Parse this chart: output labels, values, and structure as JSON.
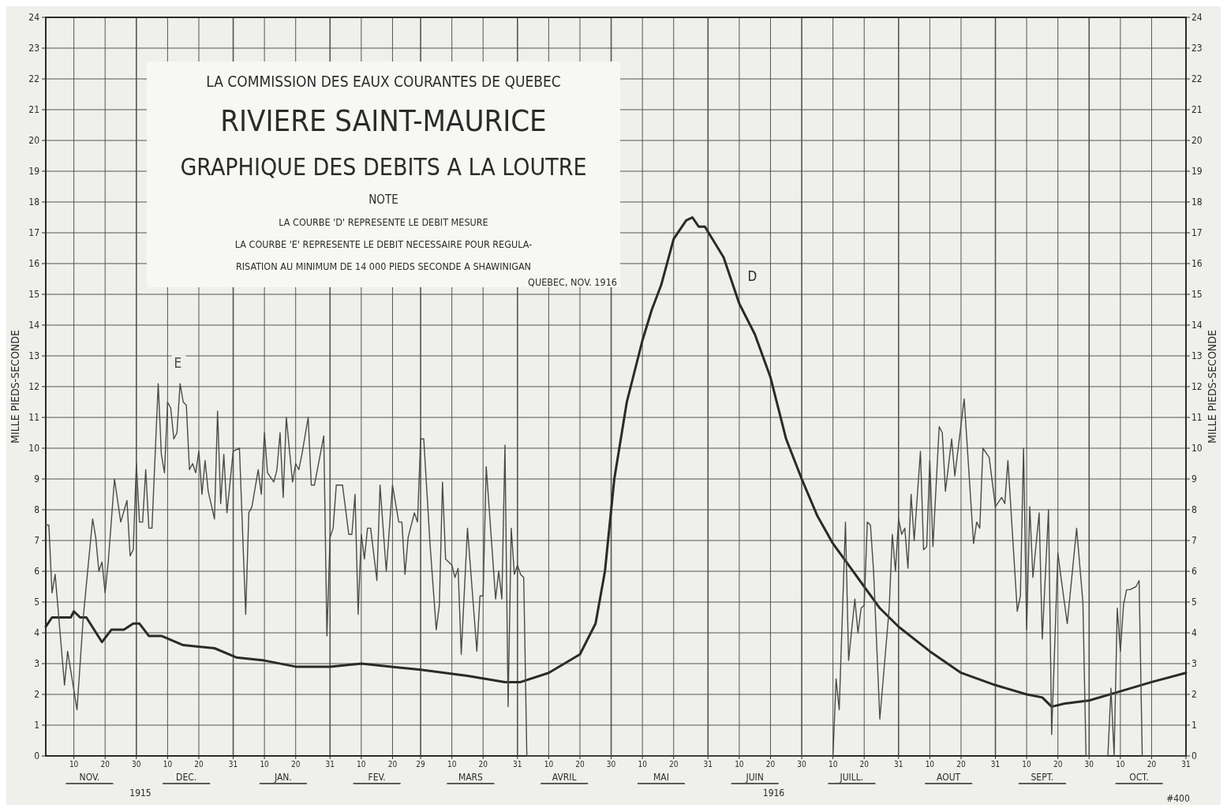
{
  "chart_data": {
    "type": "line",
    "title": "LA COMMISSION DES EAUX COURANTES DE QUEBEC",
    "subtitle": "RIVIERE SAINT-MAURICE",
    "ylabel": "MILLE PIEDS-SECONDE",
    "y2label": "MILLE PIEDS-SECONDE",
    "annotations": [
      "GRAPHIQUE DES DEBITS A LA LOUTRE",
      "NOTE",
      "LA COURBE 'D' REPRESENTE LE DEBIT MESURE",
      "LA COURBE 'E' REPRESENTE LE DEBIT NECESSAIRE POUR REGULA-",
      "RISATION AU MINIMUM DE 14 000 PIEDS SECONDE A SHAWINIGAN",
      "QUEBEC, NOV. 1916",
      "1915",
      "1916",
      "#400"
    ],
    "x2lim": [
      "1915-11-01",
      "1916-10-31"
    ],
    "x2ticks": [
      {
        "value": "1915-11-15",
        "label": "NOV."
      },
      {
        "value": "1915-12-16",
        "label": "DEC."
      },
      {
        "value": "1916-01-16",
        "label": "JAN."
      },
      {
        "value": "1916-02-15",
        "label": "FEV."
      },
      {
        "value": "1916-03-16",
        "label": "MARS"
      },
      {
        "value": "1916-04-15",
        "label": "AVRIL"
      },
      {
        "value": "1916-05-16",
        "label": "MAI"
      },
      {
        "value": "1916-06-15",
        "label": "JUIN"
      },
      {
        "value": "1916-07-16",
        "label": "JUILL."
      },
      {
        "value": "1916-08-16",
        "label": "AOUT"
      },
      {
        "value": "1916-09-15",
        "label": "SEPT."
      },
      {
        "value": "1916-10-16",
        "label": "OCT."
      }
    ],
    "xlim": [
      "1915-11-01",
      "1916-10-31"
    ],
    "xticks": [
      {
        "value": "1915-11-10",
        "label": "10"
      },
      {
        "value": "1915-11-20",
        "label": "20"
      },
      {
        "value": "1915-11-30",
        "label": "30"
      },
      {
        "value": "1915-12-10",
        "label": "10"
      },
      {
        "value": "1915-12-20",
        "label": "20"
      },
      {
        "value": "1915-12-31",
        "label": "31"
      },
      {
        "value": "1916-01-10",
        "label": "10"
      },
      {
        "value": "1916-01-20",
        "label": "20"
      },
      {
        "value": "1916-01-31",
        "label": "31"
      },
      {
        "value": "1916-02-10",
        "label": "10"
      },
      {
        "value": "1916-02-20",
        "label": "20"
      },
      {
        "value": "1916-02-29",
        "label": "29"
      },
      {
        "value": "1916-03-10",
        "label": "10"
      },
      {
        "value": "1916-03-20",
        "label": "20"
      },
      {
        "value": "1916-03-31",
        "label": "31"
      },
      {
        "value": "1916-04-10",
        "label": "10"
      },
      {
        "value": "1916-04-20",
        "label": "20"
      },
      {
        "value": "1916-04-30",
        "label": "30"
      },
      {
        "value": "1916-05-10",
        "label": "10"
      },
      {
        "value": "1916-05-20",
        "label": "20"
      },
      {
        "value": "1916-05-31",
        "label": "31"
      },
      {
        "value": "1916-06-10",
        "label": "10"
      },
      {
        "value": "1916-06-20",
        "label": "20"
      },
      {
        "value": "1916-06-30",
        "label": "30"
      },
      {
        "value": "1916-07-10",
        "label": "10"
      },
      {
        "value": "1916-07-20",
        "label": "20"
      },
      {
        "value": "1916-07-31",
        "label": "31"
      },
      {
        "value": "1916-08-10",
        "label": "10"
      },
      {
        "value": "1916-08-20",
        "label": "20"
      },
      {
        "value": "1916-08-31",
        "label": "31"
      },
      {
        "value": "1916-09-10",
        "label": "10"
      },
      {
        "value": "1916-09-20",
        "label": "20"
      },
      {
        "value": "1916-09-30",
        "label": "30"
      },
      {
        "value": "1916-10-10",
        "label": "10"
      },
      {
        "value": "1916-10-20",
        "label": "20"
      },
      {
        "value": "1916-10-31",
        "label": "31"
      }
    ],
    "ylim": [
      0,
      24
    ],
    "yticks": [
      0,
      1,
      2,
      3,
      4,
      5,
      6,
      7,
      8,
      9,
      10,
      11,
      12,
      13,
      14,
      15,
      16,
      17,
      18,
      19,
      20,
      21,
      22,
      23,
      24
    ],
    "y2lim": [
      0,
      24
    ],
    "y2ticks": [
      0,
      1,
      2,
      3,
      4,
      5,
      6,
      7,
      8,
      9,
      10,
      11,
      12,
      13,
      14,
      15,
      16,
      17,
      18,
      19,
      20,
      21,
      22,
      23,
      24
    ],
    "grid": true,
    "marker": "none",
    "line_style": "solid",
    "series": [
      {
        "name": "D",
        "color": "#2a2a2a",
        "x": [
          "1915-11-01",
          "1915-11-03",
          "1915-11-09",
          "1915-11-10",
          "1915-11-12",
          "1915-11-14",
          "1915-11-19",
          "1915-11-22",
          "1915-11-26",
          "1915-11-29",
          "1915-12-01",
          "1915-12-04",
          "1915-12-08",
          "1915-12-15",
          "1915-12-25",
          "1916-01-01",
          "1916-01-10",
          "1916-01-20",
          "1916-01-31",
          "1916-02-10",
          "1916-02-29",
          "1916-03-15",
          "1916-03-27",
          "1916-04-01",
          "1916-04-10",
          "1916-04-20",
          "1916-04-25",
          "1916-04-28",
          "1916-05-01",
          "1916-05-05",
          "1916-05-10",
          "1916-05-13",
          "1916-05-16",
          "1916-05-20",
          "1916-05-24",
          "1916-05-26",
          "1916-05-28",
          "1916-05-30",
          "1916-06-05",
          "1916-06-10",
          "1916-06-15",
          "1916-06-20",
          "1916-06-25",
          "1916-06-30",
          "1916-07-05",
          "1916-07-10",
          "1916-07-15",
          "1916-07-20",
          "1916-07-25",
          "1916-07-31",
          "1916-08-10",
          "1916-08-20",
          "1916-08-31",
          "1916-09-10",
          "1916-09-15",
          "1916-09-18",
          "1916-09-22",
          "1916-09-30",
          "1916-10-10",
          "1916-10-20",
          "1916-10-31"
        ],
        "values": [
          4.2,
          4.5,
          4.5,
          4.7,
          4.5,
          4.5,
          3.7,
          4.1,
          4.1,
          4.3,
          4.3,
          3.9,
          3.9,
          3.6,
          3.5,
          3.2,
          3.1,
          2.9,
          2.9,
          3.0,
          2.8,
          2.6,
          2.4,
          2.4,
          2.7,
          3.3,
          4.3,
          6.0,
          9.0,
          11.5,
          13.5,
          14.5,
          15.3,
          16.8,
          17.4,
          17.5,
          17.2,
          17.2,
          16.2,
          14.7,
          13.7,
          12.3,
          10.3,
          9.0,
          7.8,
          6.9,
          6.2,
          5.5,
          4.8,
          4.2,
          3.4,
          2.7,
          2.3,
          2.0,
          1.9,
          1.6,
          1.7,
          1.8,
          2.1,
          2.4,
          2.7
        ]
      },
      {
        "name": "E",
        "color": "#4a4a4a",
        "x": [
          "1915-11-01",
          "1915-11-02",
          "1915-11-03",
          "1915-11-04",
          "1915-11-07",
          "1915-11-08",
          "1915-11-11",
          "1915-11-13",
          "1915-11-16",
          "1915-11-17",
          "1915-11-18",
          "1915-11-19",
          "1915-11-20",
          "1915-11-21",
          "1915-11-23",
          "1915-11-25",
          "1915-11-27",
          "1915-11-28",
          "1915-11-29",
          "1915-11-30",
          "1915-12-01",
          "1915-12-02",
          "1915-12-03",
          "1915-12-04",
          "1915-12-05",
          "1915-12-07",
          "1915-12-08",
          "1915-12-09",
          "1915-12-10",
          "1915-12-11",
          "1915-12-12",
          "1915-12-13",
          "1915-12-14",
          "1915-12-15",
          "1915-12-16",
          "1915-12-17",
          "1915-12-18",
          "1915-12-19",
          "1915-12-20",
          "1915-12-21",
          "1915-12-22",
          "1915-12-23",
          "1915-12-25",
          "1915-12-26",
          "1915-12-27",
          "1915-12-28",
          "1915-12-29",
          "1915-12-31",
          "1916-01-02",
          "1916-01-04",
          "1916-01-05",
          "1916-01-06",
          "1916-01-08",
          "1916-01-09",
          "1916-01-10",
          "1916-01-11",
          "1916-01-13",
          "1916-01-14",
          "1916-01-15",
          "1916-01-16",
          "1916-01-17",
          "1916-01-19",
          "1916-01-20",
          "1916-01-21",
          "1916-01-22",
          "1916-01-24",
          "1916-01-25",
          "1916-01-26",
          "1916-01-29",
          "1916-01-30",
          "1916-01-31",
          "1916-02-01",
          "1916-02-02",
          "1916-02-04",
          "1916-02-06",
          "1916-02-07",
          "1916-02-08",
          "1916-02-09",
          "1916-02-10",
          "1916-02-11",
          "1916-02-12",
          "1916-02-13",
          "1916-02-15",
          "1916-02-16",
          "1916-02-18",
          "1916-02-20",
          "1916-02-22",
          "1916-02-23",
          "1916-02-24",
          "1916-02-25",
          "1916-02-27",
          "1916-02-28",
          "1916-02-29",
          "1916-03-01",
          "1916-03-03",
          "1916-03-05",
          "1916-03-06",
          "1916-03-07",
          "1916-03-08",
          "1916-03-10",
          "1916-03-11",
          "1916-03-12",
          "1916-03-13",
          "1916-03-15",
          "1916-03-18",
          "1916-03-19",
          "1916-03-20",
          "1916-03-21",
          "1916-03-24",
          "1916-03-25",
          "1916-03-26",
          "1916-03-27",
          "1916-03-28",
          "1916-03-29",
          "1916-03-30",
          "1916-03-31",
          "1916-04-01",
          "1916-04-02",
          "1916-04-03",
          "1916-07-10",
          "1916-07-11",
          "1916-07-12",
          "1916-07-14",
          "1916-07-15",
          "1916-07-17",
          "1916-07-18",
          "1916-07-19",
          "1916-07-20",
          "1916-07-21",
          "1916-07-22",
          "1916-07-23",
          "1916-07-25",
          "1916-07-28",
          "1916-07-29",
          "1916-07-30",
          "1916-07-31",
          "1916-08-01",
          "1916-08-02",
          "1916-08-03",
          "1916-08-04",
          "1916-08-05",
          "1916-08-07",
          "1916-08-08",
          "1916-08-09",
          "1916-08-10",
          "1916-08-11",
          "1916-08-13",
          "1916-08-14",
          "1916-08-15",
          "1916-08-17",
          "1916-08-18",
          "1916-08-21",
          "1916-08-24",
          "1916-08-25",
          "1916-08-26",
          "1916-08-27",
          "1916-08-29",
          "1916-08-31",
          "1916-09-02",
          "1916-09-03",
          "1916-09-04",
          "1916-09-07",
          "1916-09-08",
          "1916-09-09",
          "1916-09-10",
          "1916-09-11",
          "1916-09-12",
          "1916-09-14",
          "1916-09-15",
          "1916-09-17",
          "1916-09-18",
          "1916-09-20",
          "1916-09-21",
          "1916-09-23",
          "1916-09-26",
          "1916-09-28",
          "1916-09-29",
          "1916-10-06",
          "1916-10-07",
          "1916-10-08",
          "1916-10-09",
          "1916-10-10",
          "1916-10-11",
          "1916-10-12",
          "1916-10-13",
          "1916-10-15",
          "1916-10-16",
          "1916-10-17",
          "1916-10-31"
        ],
        "values": [
          7.5,
          7.5,
          5.3,
          5.9,
          2.3,
          3.4,
          1.5,
          4.5,
          7.7,
          7.1,
          6.0,
          6.3,
          5.3,
          6.3,
          9.0,
          7.6,
          8.3,
          6.5,
          6.7,
          9.5,
          7.6,
          7.6,
          9.3,
          7.4,
          7.4,
          12.1,
          9.8,
          9.2,
          11.5,
          11.3,
          10.3,
          10.5,
          12.1,
          11.5,
          11.4,
          9.3,
          9.5,
          9.2,
          9.9,
          8.5,
          9.6,
          8.6,
          7.7,
          11.2,
          8.2,
          9.8,
          7.9,
          9.9,
          10.0,
          4.6,
          7.9,
          8.1,
          9.3,
          8.5,
          10.5,
          9.2,
          8.9,
          9.3,
          10.5,
          8.4,
          11.0,
          8.9,
          9.5,
          9.3,
          9.8,
          11.0,
          8.8,
          8.8,
          10.4,
          3.9,
          7.1,
          7.4,
          8.8,
          8.8,
          7.2,
          7.2,
          8.5,
          4.6,
          7.2,
          6.4,
          7.4,
          7.4,
          5.7,
          8.8,
          6.0,
          8.8,
          7.6,
          7.6,
          5.9,
          7.1,
          7.9,
          7.6,
          10.3,
          10.3,
          6.9,
          4.1,
          4.9,
          8.9,
          6.4,
          6.2,
          5.8,
          6.1,
          3.3,
          7.4,
          3.4,
          5.2,
          5.2,
          9.4,
          5.1,
          6.0,
          5.1,
          10.1,
          1.6,
          7.4,
          5.9,
          6.2,
          5.9,
          5.8,
          0,
          0,
          2.5,
          1.5,
          7.6,
          3.1,
          5.1,
          4.0,
          4.8,
          4.9,
          7.6,
          7.5,
          6.0,
          1.2,
          4.8,
          7.2,
          6.0,
          7.7,
          7.2,
          7.4,
          6.1,
          8.5,
          7.0,
          9.9,
          6.7,
          6.8,
          9.6,
          6.8,
          10.7,
          10.5,
          8.6,
          10.3,
          9.1,
          11.6,
          6.9,
          7.6,
          7.4,
          10.0,
          9.7,
          8.1,
          8.4,
          8.2,
          9.6,
          4.7,
          5.2,
          10.0,
          4.1,
          8.1,
          5.8,
          7.9,
          3.8,
          8.0,
          0.7,
          6.6,
          5.8,
          4.3,
          7.4,
          5.0,
          0,
          0,
          2.2,
          0,
          4.8,
          3.4,
          4.9,
          5.4,
          5.4,
          5.5,
          5.7,
          0,
          0
        ]
      }
    ]
  }
}
